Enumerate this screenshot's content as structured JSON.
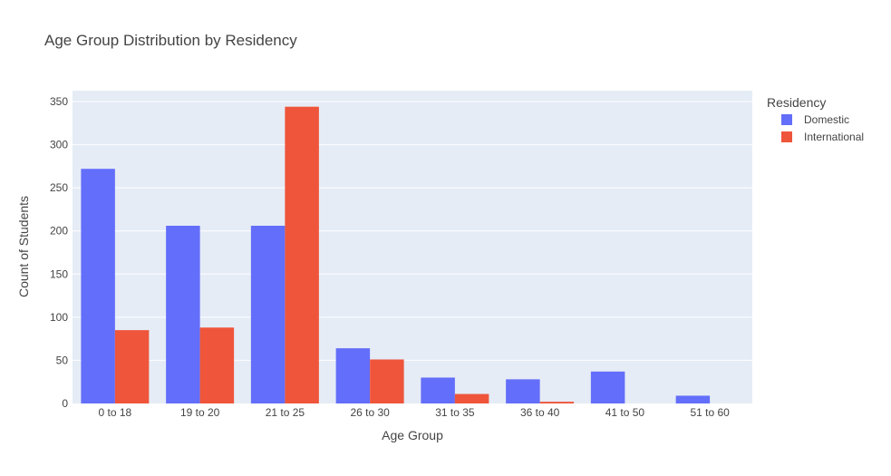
{
  "chart_data": {
    "type": "bar",
    "title": "Age Group Distribution by Residency",
    "xlabel": "Age Group",
    "ylabel": "Count of Students",
    "categories": [
      "0 to 18",
      "19 to 20",
      "21 to 25",
      "26 to 30",
      "31 to 35",
      "36 to 40",
      "41 to 50",
      "51 to 60"
    ],
    "series": [
      {
        "name": "Domestic",
        "values": [
          272,
          206,
          206,
          64,
          30,
          28,
          37,
          9
        ],
        "color": "#636efa"
      },
      {
        "name": "International",
        "values": [
          85,
          88,
          344,
          51,
          11,
          2,
          0,
          0
        ],
        "color": "#ef553b"
      }
    ],
    "ylim": [
      0,
      350
    ],
    "yticks": [
      0,
      50,
      100,
      150,
      200,
      250,
      300,
      350
    ],
    "grid": true,
    "barmode": "group",
    "legend": {
      "title": "Residency",
      "placement": "top-right outside"
    },
    "plot_background": "#e5ecf6"
  }
}
